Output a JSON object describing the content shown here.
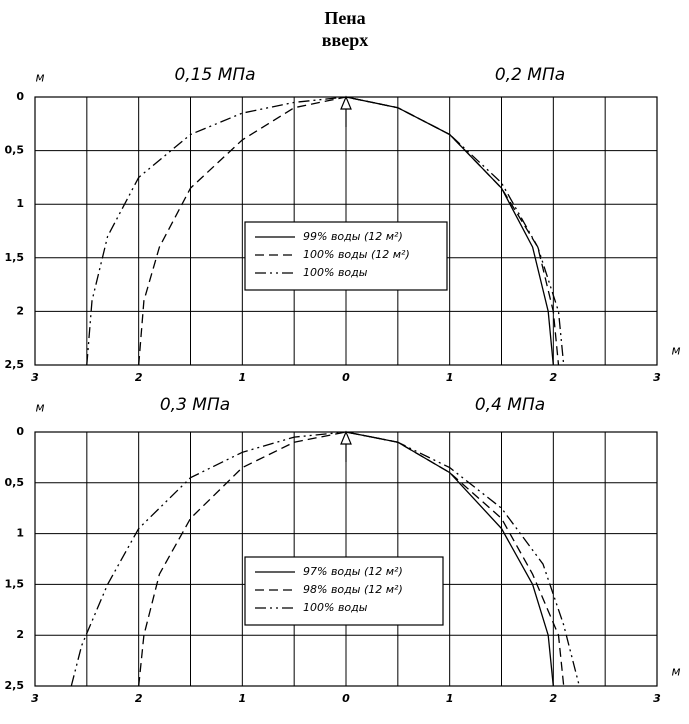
{
  "title": [
    "Пена",
    "вверх"
  ],
  "chart_data": [
    {
      "type": "line",
      "labels": [
        "0,15 МПа",
        "0,2 МПа"
      ],
      "xlabel": "м",
      "ylabel": "м",
      "xlim": [
        -3,
        3
      ],
      "ylim": [
        0,
        2.5
      ],
      "y_inverted": true,
      "grid": true,
      "xticks": [
        {
          "value": -3,
          "label": "3"
        },
        {
          "value": -2,
          "label": "2"
        },
        {
          "value": -1,
          "label": "1"
        },
        0,
        1,
        2,
        3
      ],
      "xgrid": [
        -2.5,
        -1.5,
        -0.5,
        0.5,
        1.5,
        2.5
      ],
      "yticks": [
        0,
        {
          "value": 0.5,
          "label": "0,5"
        },
        1,
        {
          "value": 1.5,
          "label": "1,5"
        },
        2,
        {
          "value": 2.5,
          "label": "2,5"
        }
      ],
      "series": [
        {
          "name": "99% воды (12 м²)",
          "color": "#000000",
          "dash": "solid",
          "x": [
            0,
            0.5,
            1,
            1.5,
            1.8,
            1.95,
            2
          ],
          "values": [
            0,
            0.1,
            0.35,
            0.85,
            1.4,
            2,
            2.5
          ]
        },
        {
          "name": "100% воды (12 м²)",
          "color": "#000000",
          "dash": "dashed",
          "x": [
            -2,
            -1.95,
            -1.8,
            -1.5,
            -1,
            -0.5,
            0,
            0.5,
            1,
            1.5,
            1.85,
            2,
            2.05
          ],
          "values": [
            2.5,
            1.9,
            1.4,
            0.85,
            0.4,
            0.1,
            0,
            0.1,
            0.35,
            0.85,
            1.4,
            2,
            2.5
          ]
        },
        {
          "name": "100% воды",
          "color": "#000000",
          "dash": "dashdot",
          "x": [
            -2.5,
            -2.45,
            -2.3,
            -2,
            -1.5,
            -1,
            -0.5,
            0,
            0.5,
            1,
            1.5,
            1.85,
            2.05,
            2.1
          ],
          "values": [
            2.5,
            1.9,
            1.3,
            0.75,
            0.35,
            0.15,
            0.05,
            0,
            0.1,
            0.35,
            0.8,
            1.4,
            2,
            2.5
          ]
        }
      ]
    },
    {
      "type": "line",
      "labels": [
        "0,3 МПа",
        "0,4 МПа"
      ],
      "xlabel": "м",
      "ylabel": "м",
      "xlim": [
        -3,
        3
      ],
      "ylim": [
        0,
        2.5
      ],
      "y_inverted": true,
      "grid": true,
      "xticks": [
        {
          "value": -3,
          "label": "3"
        },
        {
          "value": -2,
          "label": "2"
        },
        {
          "value": -1,
          "label": "1"
        },
        0,
        1,
        2,
        3
      ],
      "xgrid": [
        -2.5,
        -1.5,
        -0.5,
        0.5,
        1.5,
        2.5
      ],
      "yticks": [
        0,
        {
          "value": 0.5,
          "label": "0,5"
        },
        1,
        {
          "value": 1.5,
          "label": "1,5"
        },
        2,
        {
          "value": 2.5,
          "label": "2,5"
        }
      ],
      "series": [
        {
          "name": "97% воды (12 м²)",
          "color": "#000000",
          "dash": "solid",
          "x": [
            0,
            0.5,
            1,
            1.5,
            1.8,
            1.95,
            2
          ],
          "values": [
            0,
            0.1,
            0.4,
            0.95,
            1.5,
            2,
            2.5
          ]
        },
        {
          "name": "98% воды (12 м²)",
          "color": "#000000",
          "dash": "dashed",
          "x": [
            -2,
            -1.95,
            -1.8,
            -1.5,
            -1,
            -0.5,
            0,
            0.5,
            1,
            1.5,
            1.8,
            2.05,
            2.1
          ],
          "values": [
            2.5,
            2,
            1.4,
            0.85,
            0.35,
            0.1,
            0,
            0.1,
            0.4,
            0.85,
            1.4,
            2,
            2.5
          ]
        },
        {
          "name": "100% воды",
          "color": "#000000",
          "dash": "dashdot",
          "x": [
            -2.65,
            -2.55,
            -2.3,
            -2,
            -1.5,
            -1,
            -0.5,
            0,
            0.5,
            1,
            1.5,
            1.9,
            2.1,
            2.25
          ],
          "values": [
            2.5,
            2.1,
            1.5,
            0.95,
            0.45,
            0.2,
            0.05,
            0,
            0.1,
            0.35,
            0.75,
            1.3,
            1.9,
            2.5
          ]
        }
      ]
    }
  ]
}
